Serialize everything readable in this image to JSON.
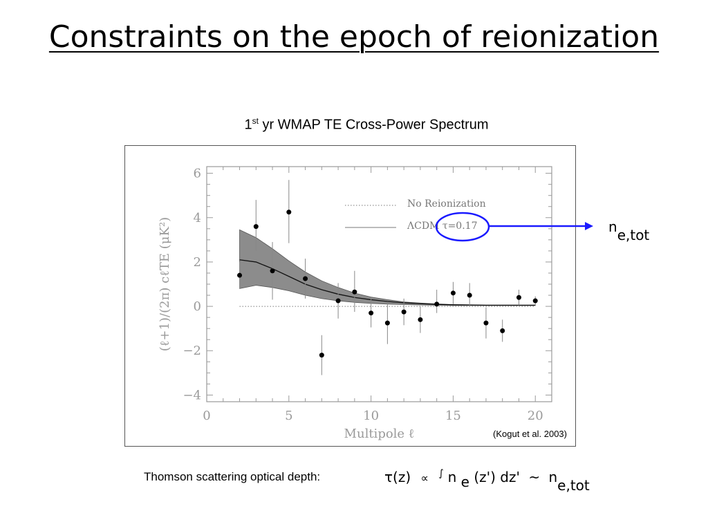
{
  "slide": {
    "title": "Constraints on the epoch of reionization"
  },
  "chart_heading": {
    "prefix": "1",
    "superscript": "st",
    "rest": " yr WMAP TE Cross-Power Spectrum"
  },
  "citation": "(Kogut et al. 2003)",
  "annotation": {
    "ne_main": "n",
    "ne_sub": "e,tot",
    "arrow_color": "#1a1aff"
  },
  "footer": {
    "label": "Thomson scattering optical depth:",
    "formula": {
      "tau": "τ(z)",
      "prop": "∝",
      "integral": "∫",
      "n": "n",
      "n_sub": "e",
      "arg": "(z') dz'",
      "tilde": "~",
      "n2": "n",
      "n2_sub": "e,tot"
    }
  },
  "chart_data": {
    "type": "scatter",
    "title": "",
    "xlabel": "Multipole ℓ",
    "ylabel": "(ℓ+1)/(2π) cℓTE (μK²)",
    "xlim": [
      0,
      21
    ],
    "ylim": [
      -4.3,
      6.3
    ],
    "xticks": [
      0,
      5,
      10,
      15,
      20
    ],
    "yticks": [
      6,
      4,
      2,
      0,
      -2,
      -4
    ],
    "ytick_labels": [
      "6",
      "4",
      "2",
      "0",
      "−2",
      "−4"
    ],
    "legend": {
      "placement": "top-right",
      "entries": [
        {
          "label": "No Reionization",
          "style": "dotted"
        },
        {
          "label": "ΛCDM  τ=0.17",
          "style": "solid"
        }
      ]
    },
    "series": [
      {
        "name": "data",
        "kind": "points",
        "x": [
          2,
          3,
          4,
          5,
          6,
          7,
          8,
          9,
          10,
          11,
          12,
          13,
          14,
          15,
          16,
          17,
          18,
          19,
          20
        ],
        "y": [
          1.4,
          3.6,
          1.6,
          4.25,
          1.25,
          -2.2,
          0.25,
          0.65,
          -0.3,
          -0.75,
          -0.25,
          -0.6,
          0.1,
          0.6,
          0.5,
          -0.75,
          -1.1,
          0.4,
          0.25
        ],
        "err_lo": [
          0.6,
          1.1,
          1.3,
          1.4,
          0.9,
          0.9,
          0.8,
          0.9,
          0.65,
          0.95,
          0.6,
          0.6,
          0.4,
          0.5,
          0.5,
          0.7,
          0.5,
          0.35,
          0.2
        ],
        "err_hi": [
          0.6,
          1.2,
          1.3,
          1.45,
          0.9,
          0.9,
          0.8,
          0.95,
          0.65,
          0.95,
          0.6,
          0.6,
          0.65,
          0.5,
          0.55,
          0.7,
          0.5,
          0.35,
          0.2
        ]
      },
      {
        "name": "No Reionization",
        "kind": "line-dotted",
        "x": [
          2,
          20
        ],
        "y": [
          0,
          0
        ]
      },
      {
        "name": "ΛCDM τ=0.17",
        "kind": "line",
        "x": [
          2,
          3,
          4,
          5,
          6,
          7,
          8,
          9,
          10,
          11,
          12,
          13,
          14,
          15,
          16,
          17,
          18,
          19,
          20
        ],
        "y": [
          2.1,
          2.0,
          1.7,
          1.35,
          1.0,
          0.75,
          0.55,
          0.4,
          0.3,
          0.22,
          0.16,
          0.12,
          0.09,
          0.07,
          0.06,
          0.05,
          0.05,
          0.05,
          0.05
        ]
      },
      {
        "name": "ΛCDM band",
        "kind": "band",
        "x": [
          2,
          3,
          4,
          5,
          6,
          7,
          8,
          9,
          10,
          11,
          12,
          13,
          14,
          15,
          16,
          17,
          18,
          19,
          20
        ],
        "upper": [
          3.45,
          3.1,
          2.6,
          2.05,
          1.55,
          1.15,
          0.85,
          0.6,
          0.42,
          0.3,
          0.2,
          0.15,
          0.11,
          0.08,
          0.07,
          0.06,
          0.06,
          0.06,
          0.06
        ],
        "lower": [
          0.8,
          0.95,
          0.85,
          0.7,
          0.5,
          0.35,
          0.25,
          0.18,
          0.13,
          0.1,
          0.08,
          0.06,
          0.05,
          0.04,
          0.04,
          0.04,
          0.04,
          0.04,
          0.04
        ]
      }
    ],
    "colors": {
      "band": "#8c8c8c",
      "axis": "#9a9a9a",
      "points": "#000000",
      "highlight_ellipse": "#1a1aff"
    }
  }
}
